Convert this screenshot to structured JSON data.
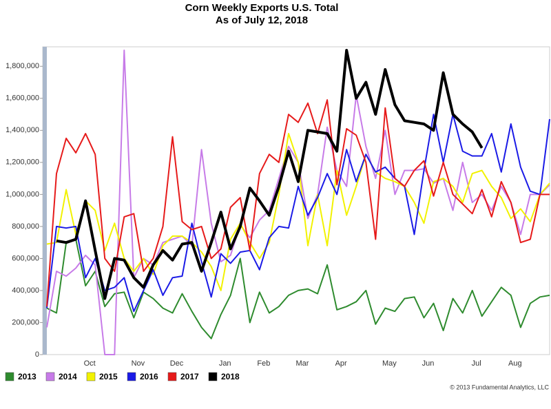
{
  "chart_data": {
    "type": "line",
    "title": "Corn Weekly Exports U.S. Total",
    "subtitle": "As of July 12, 2018",
    "credit": "© 2013 Fundamental Analytics, LLC",
    "categories": [
      null,
      null,
      null,
      null,
      "Oct",
      null,
      null,
      null,
      null,
      "Nov",
      null,
      null,
      null,
      "Dec",
      null,
      null,
      null,
      null,
      "Jan",
      null,
      null,
      null,
      "Feb",
      null,
      null,
      null,
      "Mar",
      null,
      null,
      null,
      "Apr",
      null,
      null,
      null,
      null,
      "May",
      null,
      null,
      null,
      "Jun",
      null,
      null,
      null,
      null,
      "Jul",
      null,
      null,
      null,
      "Aug",
      null,
      null,
      null,
      null
    ],
    "ylim": [
      0,
      1900000
    ],
    "yticks": [
      0,
      {
        "value": 200000,
        "label": "200,000"
      },
      {
        "value": 400000,
        "label": "400,000"
      },
      {
        "value": 600000,
        "label": "600,000"
      },
      {
        "value": 800000,
        "label": "800,000"
      },
      {
        "value": 1000000,
        "label": "1,000,000"
      },
      {
        "value": 1200000,
        "label": "1,200,000"
      },
      {
        "value": 1400000,
        "label": "1,400,000"
      },
      {
        "value": 1600000,
        "label": "1,600,000"
      },
      {
        "value": 1800000,
        "label": "1,800,000"
      }
    ],
    "legend": "bottom",
    "series": [
      {
        "name": "2013",
        "color": "#2e8b2e",
        "values": [
          290000,
          260000,
          700000,
          720000,
          430000,
          520000,
          300000,
          380000,
          390000,
          230000,
          390000,
          350000,
          290000,
          260000,
          380000,
          270000,
          170000,
          100000,
          250000,
          370000,
          600000,
          200000,
          390000,
          260000,
          300000,
          370000,
          400000,
          410000,
          380000,
          560000,
          280000,
          300000,
          330000,
          400000,
          190000,
          290000,
          270000,
          350000,
          360000,
          230000,
          320000,
          150000,
          350000,
          260000,
          400000,
          240000,
          330000,
          420000,
          370000,
          170000,
          320000,
          360000,
          370000
        ]
      },
      {
        "name": "2014",
        "color": "#c77be8",
        "values": [
          170000,
          520000,
          490000,
          540000,
          620000,
          560000,
          0,
          0,
          1900000,
          480000,
          600000,
          560000,
          700000,
          720000,
          740000,
          680000,
          1280000,
          820000,
          580000,
          620000,
          810000,
          730000,
          840000,
          900000,
          1100000,
          1300000,
          1200000,
          850000,
          1000000,
          1420000,
          1150000,
          1050000,
          1620000,
          1300000,
          1100000,
          1400000,
          1000000,
          1150000,
          1150000,
          1160000,
          1070000,
          1100000,
          900000,
          1200000,
          950000,
          1000000,
          900000,
          1050000,
          950000,
          750000,
          1000000,
          1000000,
          1060000
        ]
      },
      {
        "name": "2015",
        "color": "#f2f200",
        "values": [
          690000,
          700000,
          1030000,
          750000,
          960000,
          900000,
          650000,
          820000,
          600000,
          520000,
          600000,
          500000,
          680000,
          740000,
          740000,
          700000,
          640000,
          550000,
          400000,
          720000,
          820000,
          700000,
          600000,
          700000,
          1000000,
          1380000,
          1200000,
          680000,
          1000000,
          680000,
          1150000,
          870000,
          1050000,
          1250000,
          1140000,
          1100000,
          1080000,
          1050000,
          950000,
          820000,
          1080000,
          1100000,
          1050000,
          950000,
          1130000,
          1150000,
          1050000,
          980000,
          850000,
          910000,
          830000,
          1000000,
          1070000
        ]
      },
      {
        "name": "2016",
        "color": "#1a1ae6",
        "values": [
          290000,
          800000,
          790000,
          800000,
          480000,
          600000,
          400000,
          420000,
          480000,
          270000,
          400000,
          530000,
          370000,
          480000,
          490000,
          820000,
          580000,
          360000,
          630000,
          570000,
          640000,
          650000,
          530000,
          730000,
          800000,
          790000,
          1050000,
          870000,
          980000,
          1130000,
          1000000,
          1280000,
          1080000,
          1250000,
          1140000,
          1170000,
          1100000,
          1050000,
          750000,
          1150000,
          1500000,
          1200000,
          1500000,
          1270000,
          1240000,
          1240000,
          1380000,
          1140000,
          1440000,
          1170000,
          1020000,
          1000000,
          1470000
        ]
      },
      {
        "name": "2017",
        "color": "#e61a1a",
        "values": [
          300000,
          1130000,
          1350000,
          1260000,
          1380000,
          1250000,
          600000,
          520000,
          860000,
          880000,
          520000,
          600000,
          800000,
          1360000,
          830000,
          780000,
          800000,
          600000,
          660000,
          920000,
          980000,
          650000,
          1130000,
          1250000,
          1200000,
          1500000,
          1450000,
          1570000,
          1380000,
          1590000,
          1060000,
          1410000,
          1370000,
          1200000,
          720000,
          1540000,
          1100000,
          1050000,
          1150000,
          1210000,
          990000,
          1200000,
          1000000,
          940000,
          880000,
          1030000,
          860000,
          1080000,
          950000,
          700000,
          720000,
          1000000,
          1000000
        ]
      },
      {
        "name": "2018",
        "color": "#000000",
        "values": [
          null,
          710000,
          700000,
          720000,
          960000,
          650000,
          350000,
          600000,
          590000,
          480000,
          420000,
          560000,
          650000,
          590000,
          690000,
          700000,
          520000,
          700000,
          890000,
          660000,
          800000,
          1040000,
          960000,
          870000,
          1050000,
          1270000,
          1080000,
          1400000,
          1390000,
          1380000,
          1270000,
          1900000,
          1600000,
          1700000,
          1500000,
          1780000,
          1560000,
          1460000,
          1450000,
          1440000,
          1400000,
          1760000,
          1500000,
          1440000,
          1390000,
          1290000,
          null,
          null,
          null,
          null,
          null,
          null,
          null
        ]
      }
    ]
  }
}
